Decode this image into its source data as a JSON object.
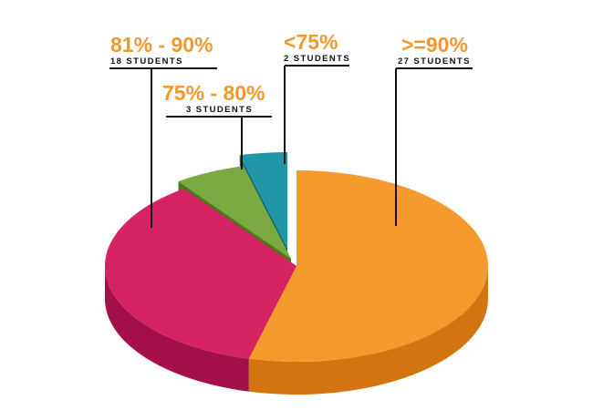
{
  "chart_data": {
    "type": "pie",
    "style": "3d-exploded",
    "unit_label": "STUDENTS",
    "slices": [
      {
        "label": ">=90%",
        "value": 27,
        "count_text": "27 STUDENTS",
        "color": "#f59a2c",
        "side_color": "#d2740f"
      },
      {
        "label": "81% - 90%",
        "value": 18,
        "count_text": "18 STUDENTS",
        "color": "#d42263",
        "side_color": "#a3104a"
      },
      {
        "label": "75% - 80%",
        "value": 3,
        "count_text": "3 STUDENTS",
        "color": "#79a940",
        "side_color": "#4b7a1a"
      },
      {
        "label": "<75%",
        "value": 2,
        "count_text": "2 STUDENTS",
        "color": "#2196a6",
        "side_color": "#136b77"
      }
    ]
  }
}
